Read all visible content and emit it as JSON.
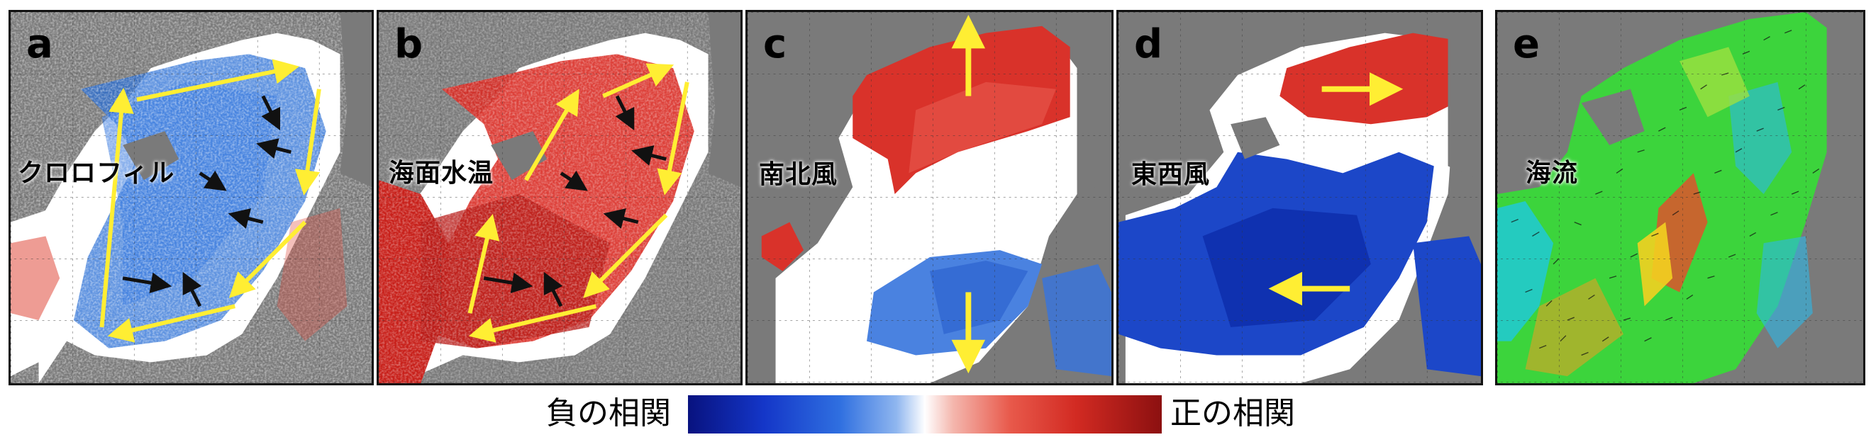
{
  "panels": [
    {
      "letter": "a",
      "label": "クロロフィル"
    },
    {
      "letter": "b",
      "label": "海面水温"
    },
    {
      "letter": "c",
      "label": "南北風"
    },
    {
      "letter": "d",
      "label": "東西風"
    },
    {
      "letter": "e",
      "label": "海流"
    }
  ],
  "colorbar": {
    "negative_label": "負の相関",
    "positive_label": "正の相関"
  },
  "colors": {
    "land": "#7a7a7a",
    "negative": "#1436c8",
    "positive": "#d22a22",
    "arrow_yellow": "#ffee33",
    "arrow_black": "#111111"
  }
}
